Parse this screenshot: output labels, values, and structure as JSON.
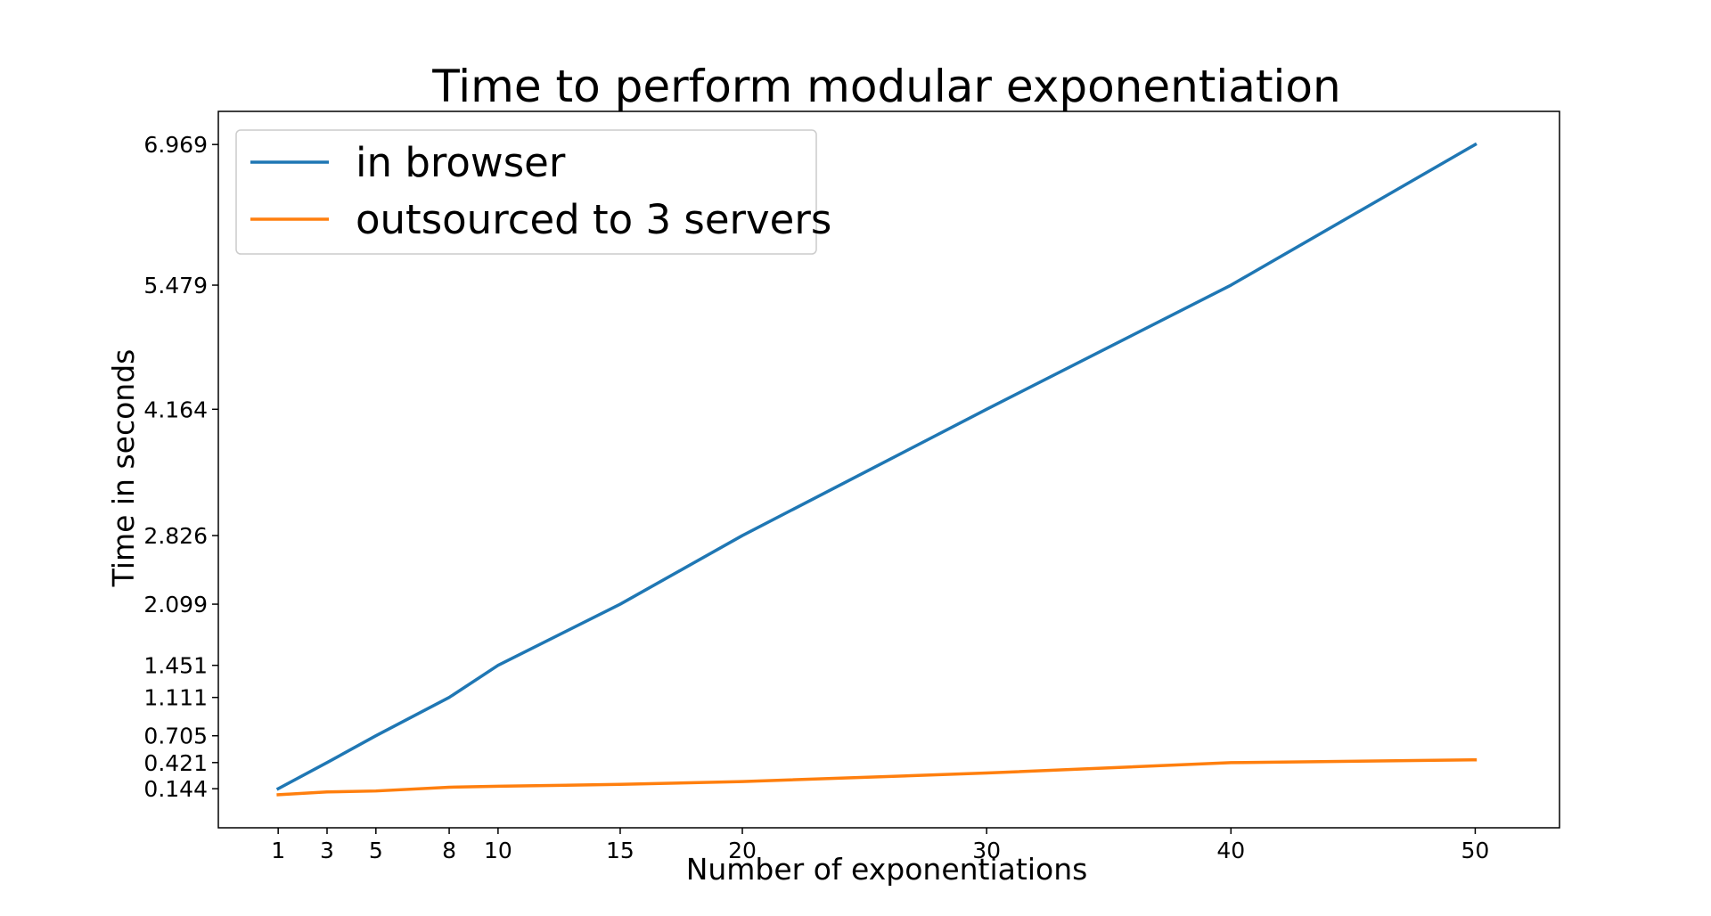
{
  "chart_data": {
    "type": "line",
    "title": "Time to perform modular exponentiation",
    "xlabel": "Number of exponentiations",
    "ylabel": "Time in seconds",
    "x": [
      1,
      3,
      5,
      8,
      10,
      15,
      20,
      30,
      40,
      50
    ],
    "x_ticks": [
      "1",
      "3",
      "5",
      "8",
      "10",
      "15",
      "20",
      "30",
      "40",
      "50"
    ],
    "y_ticks": [
      "0.144",
      "0.421",
      "0.705",
      "1.111",
      "1.451",
      "2.099",
      "2.826",
      "4.164",
      "5.479",
      "6.969"
    ],
    "series": [
      {
        "name": "in browser",
        "color": "#1f77b4",
        "values": [
          0.144,
          0.421,
          0.705,
          1.111,
          1.451,
          2.099,
          2.826,
          4.164,
          5.479,
          6.969
        ]
      },
      {
        "name": "outsourced to 3 servers",
        "color": "#ff7f0e",
        "values": [
          0.08,
          0.11,
          0.12,
          0.16,
          0.17,
          0.19,
          0.22,
          0.31,
          0.42,
          0.45
        ]
      }
    ],
    "xlim": [
      -1.45,
      53.45
    ],
    "ylim": [
      -0.27,
      7.32
    ],
    "legend_position": "top-left",
    "grid": false
  }
}
